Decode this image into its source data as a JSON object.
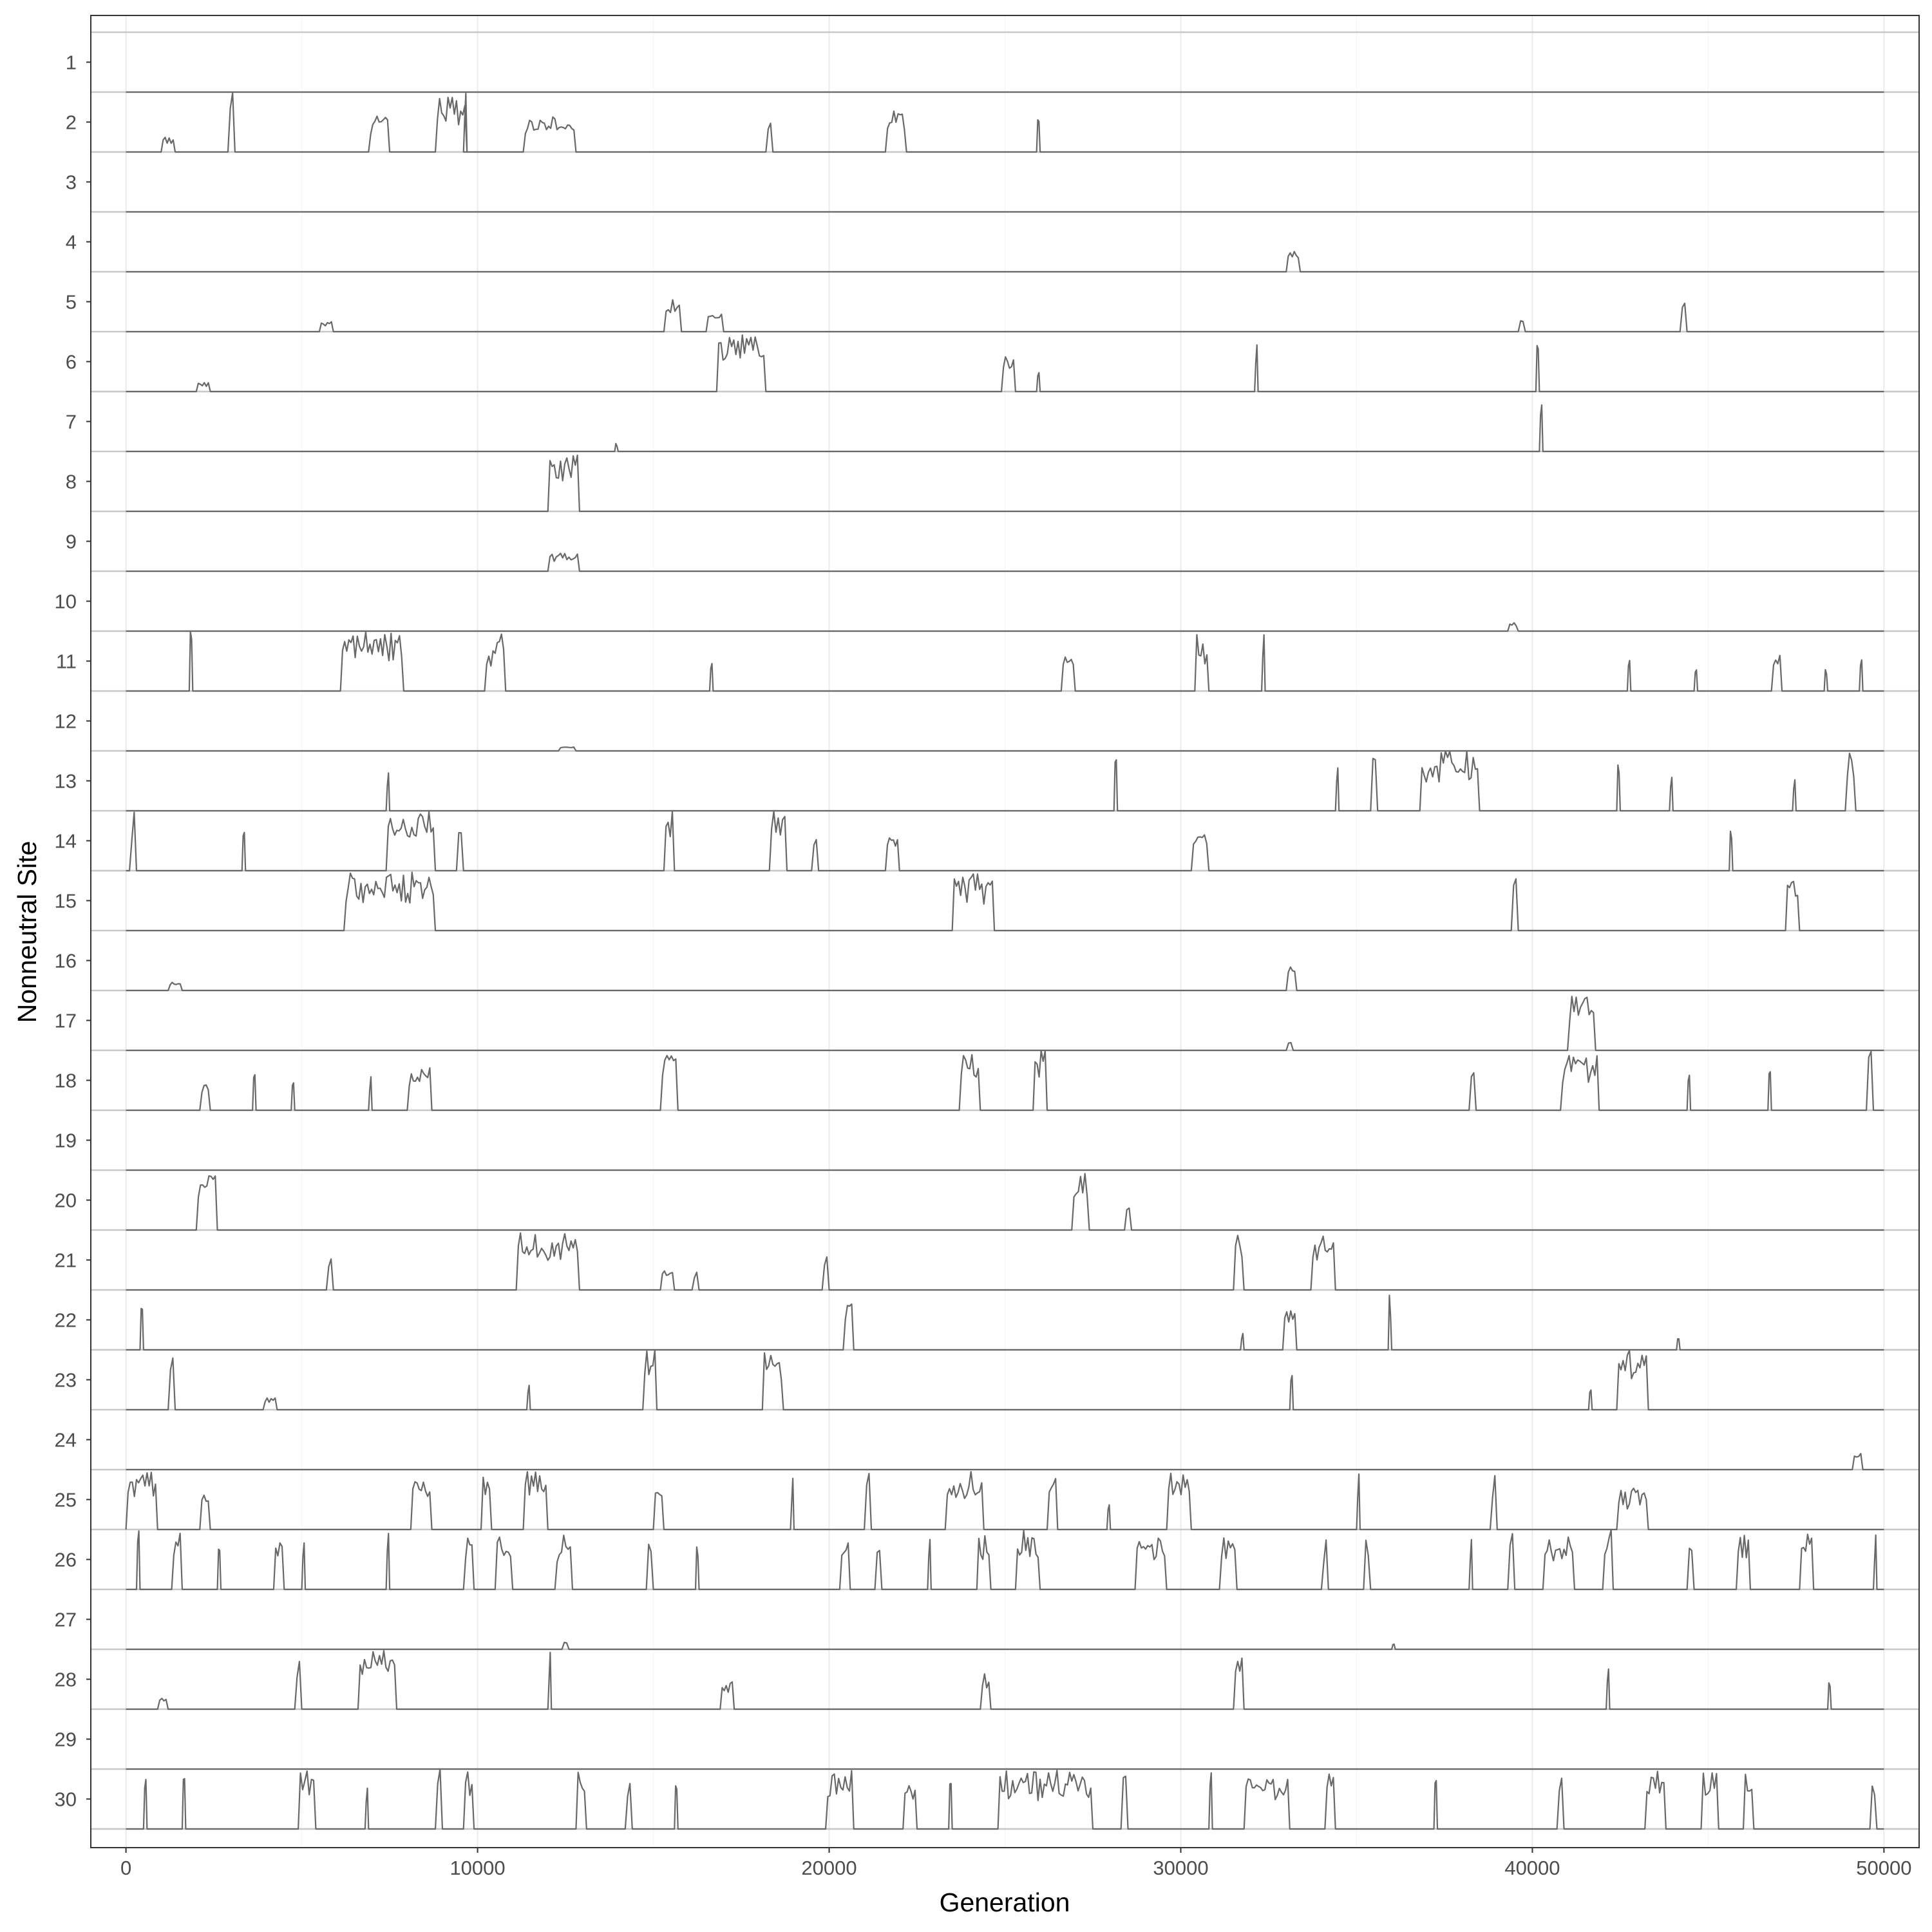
{
  "chart_data": {
    "type": "line",
    "title": "",
    "xlabel": "Generation",
    "ylabel": "Nonneutral Site",
    "xlim": [
      -1000,
      51000
    ],
    "x_ticks": [
      0,
      10000,
      20000,
      30000,
      40000,
      50000
    ],
    "x_tick_labels": [
      "0",
      "10000",
      "20000",
      "30000",
      "40000",
      "50000"
    ],
    "categories": [
      "1",
      "2",
      "3",
      "4",
      "5",
      "6",
      "7",
      "8",
      "9",
      "10",
      "11",
      "12",
      "13",
      "14",
      "15",
      "16",
      "17",
      "18",
      "19",
      "20",
      "21",
      "22",
      "23",
      "24",
      "25",
      "26",
      "27",
      "28",
      "29",
      "30"
    ],
    "grid": true,
    "line_color": "#696969",
    "band_rule_color": "#c8c8c8",
    "series": [
      {
        "name": "1",
        "events": []
      },
      {
        "name": "2",
        "events": [
          [
            1000,
            1400,
            0.25
          ],
          [
            2900,
            3100,
            1.0
          ],
          [
            6900,
            7500,
            0.6
          ],
          [
            8800,
            9700,
            0.95
          ],
          [
            9600,
            9700,
            1.0
          ],
          [
            11300,
            12800,
            0.6
          ],
          [
            18200,
            18400,
            0.55
          ],
          [
            21600,
            22200,
            0.75
          ],
          [
            25900,
            26000,
            0.6
          ]
        ]
      },
      {
        "name": "3",
        "events": []
      },
      {
        "name": "4",
        "events": [
          [
            33000,
            33400,
            0.35
          ]
        ]
      },
      {
        "name": "5",
        "events": [
          [
            5500,
            5900,
            0.2
          ],
          [
            15300,
            15800,
            0.55
          ],
          [
            16500,
            17000,
            0.3
          ],
          [
            39600,
            39800,
            0.3
          ],
          [
            44200,
            44400,
            0.6
          ]
        ]
      },
      {
        "name": "6",
        "events": [
          [
            2000,
            2400,
            0.15
          ],
          [
            16800,
            18200,
            0.95
          ],
          [
            24900,
            25300,
            0.6
          ],
          [
            25900,
            26000,
            0.5
          ],
          [
            32100,
            32200,
            0.9
          ],
          [
            40100,
            40200,
            0.9
          ]
        ]
      },
      {
        "name": "7",
        "events": [
          [
            40200,
            40300,
            1.0
          ],
          [
            13900,
            14000,
            0.15
          ]
        ]
      },
      {
        "name": "8",
        "events": [
          [
            12000,
            12900,
            1.0
          ]
        ]
      },
      {
        "name": "9",
        "events": [
          [
            12000,
            12900,
            0.3
          ]
        ]
      },
      {
        "name": "10",
        "events": [
          [
            39300,
            39600,
            0.15
          ]
        ]
      },
      {
        "name": "11",
        "events": [
          [
            1800,
            1900,
            1.0
          ],
          [
            6100,
            7900,
            1.0
          ],
          [
            10200,
            10800,
            1.0
          ],
          [
            16600,
            16700,
            0.6
          ],
          [
            26600,
            27000,
            0.6
          ],
          [
            30400,
            30800,
            1.0
          ],
          [
            32300,
            32400,
            1.0
          ],
          [
            42700,
            42800,
            0.55
          ],
          [
            44600,
            44700,
            0.55
          ],
          [
            46800,
            47100,
            0.6
          ],
          [
            48300,
            48400,
            0.5
          ],
          [
            49300,
            49400,
            0.6
          ]
        ]
      },
      {
        "name": "12",
        "events": [
          [
            12300,
            12800,
            0.1
          ]
        ]
      },
      {
        "name": "13",
        "events": [
          [
            7400,
            7500,
            0.8
          ],
          [
            28100,
            28200,
            1.0
          ],
          [
            34400,
            34500,
            1.0
          ],
          [
            35400,
            35600,
            1.0
          ],
          [
            36800,
            38500,
            1.0
          ],
          [
            42400,
            42500,
            0.9
          ],
          [
            43900,
            44000,
            0.9
          ],
          [
            47400,
            47500,
            0.55
          ],
          [
            48900,
            49200,
            1.0
          ]
        ]
      },
      {
        "name": "14",
        "events": [
          [
            100,
            300,
            1.0
          ],
          [
            3300,
            3400,
            1.0
          ],
          [
            7400,
            8800,
            1.0
          ],
          [
            9400,
            9600,
            0.8
          ],
          [
            15300,
            15600,
            1.0
          ],
          [
            18300,
            18800,
            1.0
          ],
          [
            19500,
            19700,
            0.9
          ],
          [
            21600,
            22000,
            0.75
          ],
          [
            30300,
            30800,
            0.6
          ],
          [
            45600,
            45700,
            0.8
          ]
        ]
      },
      {
        "name": "15",
        "events": [
          [
            6200,
            8800,
            1.0
          ],
          [
            23500,
            24700,
            1.0
          ],
          [
            39400,
            39600,
            1.0
          ],
          [
            47200,
            47600,
            1.0
          ]
        ]
      },
      {
        "name": "16",
        "events": [
          [
            1200,
            1600,
            0.15
          ],
          [
            33000,
            33300,
            0.4
          ]
        ]
      },
      {
        "name": "17",
        "events": [
          [
            33000,
            33200,
            0.2
          ],
          [
            41000,
            41800,
            1.0
          ]
        ]
      },
      {
        "name": "18",
        "events": [
          [
            2100,
            2400,
            0.5
          ],
          [
            3600,
            3700,
            1.0
          ],
          [
            4700,
            4800,
            0.5
          ],
          [
            6900,
            7000,
            0.6
          ],
          [
            8000,
            8700,
            0.75
          ],
          [
            15200,
            15700,
            1.0
          ],
          [
            23700,
            24300,
            1.0
          ],
          [
            25800,
            26200,
            1.0
          ],
          [
            38200,
            38400,
            1.0
          ],
          [
            40800,
            41900,
            1.0
          ],
          [
            44400,
            44500,
            1.0
          ],
          [
            46700,
            46800,
            1.0
          ],
          [
            49500,
            49700,
            1.0
          ]
        ]
      },
      {
        "name": "19",
        "events": []
      },
      {
        "name": "20",
        "events": [
          [
            2000,
            2600,
            1.0
          ],
          [
            26900,
            27400,
            1.0
          ],
          [
            28400,
            28600,
            0.5
          ]
        ]
      },
      {
        "name": "21",
        "events": [
          [
            5700,
            5900,
            0.55
          ],
          [
            11100,
            12900,
            1.0
          ],
          [
            15200,
            15600,
            0.4
          ],
          [
            16100,
            16300,
            0.45
          ],
          [
            19800,
            20000,
            0.75
          ],
          [
            31500,
            31800,
            1.0
          ],
          [
            33700,
            34400,
            1.0
          ]
        ]
      },
      {
        "name": "22",
        "events": [
          [
            400,
            500,
            1.0
          ],
          [
            20400,
            20700,
            1.0
          ],
          [
            31700,
            31800,
            0.35
          ],
          [
            32900,
            33300,
            0.85
          ],
          [
            35900,
            36000,
            1.0
          ],
          [
            44100,
            44200,
            0.3
          ]
        ]
      },
      {
        "name": "23",
        "events": [
          [
            1200,
            1400,
            1.0
          ],
          [
            3900,
            4300,
            0.2
          ],
          [
            11400,
            11500,
            0.5
          ],
          [
            14700,
            15100,
            1.0
          ],
          [
            18100,
            18700,
            1.0
          ],
          [
            33100,
            33200,
            0.6
          ],
          [
            41600,
            41700,
            0.55
          ],
          [
            42400,
            43300,
            1.0
          ]
        ]
      },
      {
        "name": "24",
        "events": [
          [
            49100,
            49400,
            0.35
          ]
        ]
      },
      {
        "name": "25",
        "events": [
          [
            0,
            900,
            1.0
          ],
          [
            2100,
            2400,
            0.6
          ],
          [
            8100,
            8700,
            1.0
          ],
          [
            10100,
            10400,
            1.0
          ],
          [
            11300,
            12000,
            1.0
          ],
          [
            15000,
            15300,
            0.7
          ],
          [
            18900,
            19000,
            0.9
          ],
          [
            21000,
            21200,
            1.0
          ],
          [
            23300,
            24400,
            1.0
          ],
          [
            26200,
            26500,
            1.0
          ],
          [
            27900,
            28000,
            0.5
          ],
          [
            29600,
            30300,
            1.0
          ],
          [
            35000,
            35100,
            1.0
          ],
          [
            38800,
            39000,
            1.0
          ],
          [
            42400,
            43300,
            0.75
          ]
        ]
      },
      {
        "name": "26",
        "events": [
          [
            300,
            400,
            1.0
          ],
          [
            1300,
            1600,
            1.0
          ],
          [
            2600,
            2700,
            1.0
          ],
          [
            4200,
            4500,
            1.0
          ],
          [
            5000,
            5100,
            1.0
          ],
          [
            7400,
            7500,
            1.0
          ],
          [
            9600,
            9900,
            1.0
          ],
          [
            10500,
            11000,
            1.0
          ],
          [
            12200,
            12700,
            1.0
          ],
          [
            14800,
            15000,
            1.0
          ],
          [
            16200,
            16300,
            1.0
          ],
          [
            20300,
            20600,
            1.0
          ],
          [
            21300,
            21500,
            1.0
          ],
          [
            22800,
            22900,
            1.0
          ],
          [
            24200,
            24600,
            1.0
          ],
          [
            25300,
            26000,
            1.0
          ],
          [
            28700,
            29600,
            1.0
          ],
          [
            31100,
            31600,
            1.0
          ],
          [
            34000,
            34200,
            1.0
          ],
          [
            35200,
            35400,
            1.0
          ],
          [
            38200,
            38300,
            1.0
          ],
          [
            39300,
            39500,
            1.0
          ],
          [
            40300,
            41200,
            1.0
          ],
          [
            42000,
            42300,
            1.0
          ],
          [
            44400,
            44600,
            1.0
          ],
          [
            45800,
            46200,
            1.0
          ],
          [
            47600,
            48000,
            1.0
          ],
          [
            49700,
            49800,
            1.0
          ]
        ]
      },
      {
        "name": "27",
        "events": [
          [
            12400,
            12600,
            0.15
          ],
          [
            36000,
            36100,
            0.15
          ]
        ]
      },
      {
        "name": "28",
        "events": [
          [
            900,
            1200,
            0.2
          ],
          [
            4800,
            5000,
            1.0
          ],
          [
            6600,
            7700,
            1.0
          ],
          [
            12000,
            12100,
            0.95
          ],
          [
            16900,
            17300,
            0.5
          ],
          [
            24300,
            24600,
            0.6
          ],
          [
            31500,
            31800,
            1.0
          ],
          [
            42100,
            42200,
            0.75
          ],
          [
            48400,
            48500,
            0.6
          ]
        ]
      },
      {
        "name": "29",
        "events": []
      },
      {
        "name": "30",
        "events": [
          [
            500,
            600,
            1.0
          ],
          [
            1600,
            1700,
            1.0
          ],
          [
            4900,
            5400,
            1.0
          ],
          [
            6800,
            6900,
            0.7
          ],
          [
            8800,
            9000,
            1.0
          ],
          [
            9600,
            9900,
            1.0
          ],
          [
            12800,
            13100,
            1.0
          ],
          [
            14200,
            14400,
            1.0
          ],
          [
            15600,
            15700,
            1.0
          ],
          [
            19900,
            20700,
            1.0
          ],
          [
            22100,
            22500,
            1.0
          ],
          [
            23400,
            23500,
            1.0
          ],
          [
            24800,
            27500,
            1.0
          ],
          [
            28300,
            28500,
            1.0
          ],
          [
            30800,
            30900,
            1.0
          ],
          [
            31800,
            33100,
            1.0
          ],
          [
            34100,
            34400,
            1.0
          ],
          [
            37200,
            37300,
            1.0
          ],
          [
            40700,
            40900,
            1.0
          ],
          [
            43200,
            43800,
            1.0
          ],
          [
            44800,
            45300,
            1.0
          ],
          [
            46000,
            46300,
            1.0
          ],
          [
            49600,
            49800,
            1.0
          ]
        ]
      }
    ]
  }
}
